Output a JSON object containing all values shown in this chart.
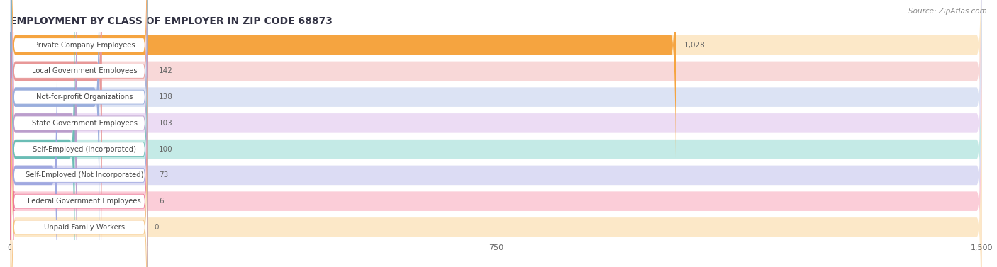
{
  "title": "EMPLOYMENT BY CLASS OF EMPLOYER IN ZIP CODE 68873",
  "source": "Source: ZipAtlas.com",
  "categories": [
    "Private Company Employees",
    "Local Government Employees",
    "Not-for-profit Organizations",
    "State Government Employees",
    "Self-Employed (Incorporated)",
    "Self-Employed (Not Incorporated)",
    "Federal Government Employees",
    "Unpaid Family Workers"
  ],
  "values": [
    1028,
    142,
    138,
    103,
    100,
    73,
    6,
    0
  ],
  "bar_colors": [
    "#f5a440",
    "#e89898",
    "#9aaedd",
    "#bb9ecc",
    "#6bbdb5",
    "#a0a8e0",
    "#ee7899",
    "#f5c07a"
  ],
  "bar_bg_colors": [
    "#fce8c8",
    "#f8d8d8",
    "#dce3f4",
    "#ecdcf4",
    "#c4eae6",
    "#dcdcf4",
    "#fbcdd8",
    "#fce8c8"
  ],
  "xlim": [
    0,
    1500
  ],
  "xticks": [
    0,
    750,
    1500
  ],
  "value_label_color": "#666666",
  "background_color": "#ffffff",
  "bar_row_bg": "#f5f5f5",
  "grid_color": "#cccccc"
}
